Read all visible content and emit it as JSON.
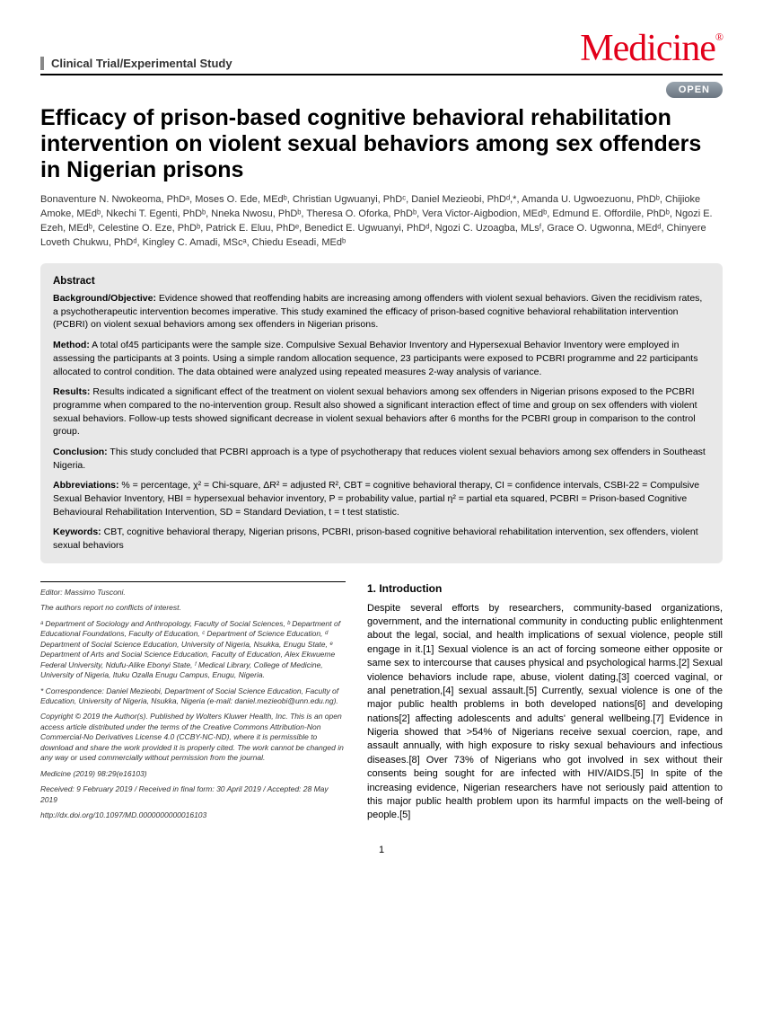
{
  "header": {
    "category": "Clinical Trial/Experimental Study",
    "journal": "Medicine",
    "open_label": "OPEN"
  },
  "title": "Efficacy of prison-based cognitive behavioral rehabilitation intervention on violent sexual behaviors among sex offenders in Nigerian prisons",
  "authors_html": "Bonaventure N. Nwokeoma, PhDᵃ, Moses O. Ede, MEdᵇ, Christian Ugwuanyi, PhDᶜ, Daniel Mezieobi, PhDᵈ,*, Amanda U. Ugwoezuonu, PhDᵇ, Chijioke Amoke, MEdᵇ, Nkechi T. Egenti, PhDᵇ, Nneka Nwosu, PhDᵇ, Theresa O. Oforka, PhDᵇ, Vera Victor-Aigbodion, MEdᵇ, Edmund E. Offordile, PhDᵇ, Ngozi E. Ezeh, MEdᵇ, Celestine O. Eze, PhDᵇ, Patrick E. Eluu, PhDᵉ, Benedict E. Ugwuanyi, PhDᵈ, Ngozi C. Uzoagba, MLsᶠ, Grace O. Ugwonna, MEdᵈ, Chinyere Loveth Chukwu, PhDᵈ, Kingley C. Amadi, MScᵃ, Chiedu Eseadi, MEdᵇ",
  "abstract": {
    "heading": "Abstract",
    "background_label": "Background/Objective:",
    "background": " Evidence showed that reoffending habits are increasing among offenders with violent sexual behaviors. Given the recidivism rates, a psychotherapeutic intervention becomes imperative. This study examined the efficacy of prison-based cognitive behavioral rehabilitation intervention (PCBRI) on violent sexual behaviors among sex offenders in Nigerian prisons.",
    "method_label": "Method:",
    "method": " A total of45 participants were the sample size. Compulsive Sexual Behavior Inventory and Hypersexual Behavior Inventory were employed in assessing the participants at 3 points. Using a simple random allocation sequence, 23 participants were exposed to PCBRI programme and 22 participants allocated to control condition. The data obtained were analyzed using repeated measures 2-way analysis of variance.",
    "results_label": "Results:",
    "results": " Results indicated a significant effect of the treatment on violent sexual behaviors among sex offenders in Nigerian prisons exposed to the PCBRI programme when compared to the no-intervention group. Result also showed a significant interaction effect of time and group on sex offenders with violent sexual behaviors. Follow-up tests showed significant decrease in violent sexual behaviors after 6 months for the PCBRI group in comparison to the control group.",
    "conclusion_label": "Conclusion:",
    "conclusion": " This study concluded that PCBRI approach is a type of psychotherapy that reduces violent sexual behaviors among sex offenders in Southeast Nigeria.",
    "abbrev_label": "Abbreviations:",
    "abbrev": " % = percentage, χ² = Chi-square, ΔR² = adjusted R², CBT = cognitive behavioral therapy, CI = confidence intervals, CSBI-22 = Compulsive Sexual Behavior Inventory, HBI = hypersexual behavior inventory, P = probability value, partial η² = partial eta squared, PCBRI = Prison-based Cognitive Behavioural Rehabilitation Intervention, SD = Standard Deviation, t = t test statistic.",
    "keywords_label": "Keywords:",
    "keywords": " CBT, cognitive behavioral therapy, Nigerian prisons, PCBRI, prison-based cognitive behavioral rehabilitation intervention, sex offenders, violent sexual behaviors"
  },
  "footer": {
    "editor": "Editor: Massimo Tusconi.",
    "coi": "The authors report no conflicts of interest.",
    "affiliations": "ᵃ Department of Sociology and Anthropology, Faculty of Social Sciences, ᵇ Department of Educational Foundations, Faculty of Education, ᶜ Department of Science Education, ᵈ Department of Social Science Education, University of Nigeria, Nsukka, Enugu State, ᵉ Department of Arts and Social Science Education, Faculty of Education, Alex Ekwueme Federal University, Ndufu-Alike Ebonyi State, ᶠ Medical Library, College of Medicine, University of Nigeria, Ituku Ozalla Enugu Campus, Enugu, Nigeria.",
    "correspondence": "* Correspondence: Daniel Mezieobi, Department of Social Science Education, Faculty of Education, University of Nigeria, Nsukka, Nigeria (e-mail: daniel.mezieobi@unn.edu.ng).",
    "copyright": "Copyright © 2019 the Author(s). Published by Wolters Kluwer Health, Inc. This is an open access article distributed under the terms of the Creative Commons Attribution-Non Commercial-No Derivatives License 4.0 (CCBY-NC-ND), where it is permissible to download and share the work provided it is properly cited. The work cannot be changed in any way or used commercially without permission from the journal.",
    "citation": "Medicine (2019) 98:29(e16103)",
    "dates": "Received: 9 February 2019 / Received in final form: 30 April 2019 / Accepted: 28 May 2019",
    "doi": "http://dx.doi.org/10.1097/MD.0000000000016103"
  },
  "intro": {
    "heading": "1. Introduction",
    "body": "Despite several efforts by researchers, community-based organizations, government, and the international community in conducting public enlightenment about the legal, social, and health implications of sexual violence, people still engage in it.[1] Sexual violence is an act of forcing someone either opposite or same sex to intercourse that causes physical and psychological harms.[2] Sexual violence behaviors include rape, abuse, violent dating,[3] coerced vaginal, or anal penetration,[4] sexual assault.[5] Currently, sexual violence is one of the major public health problems in both developed nations[6] and developing nations[2] affecting adolescents and adults' general wellbeing.[7] Evidence in Nigeria showed that >54% of Nigerians receive sexual coercion, rape, and assault annually, with high exposure to risky sexual behaviours and infectious diseases.[8] Over 73% of Nigerians who got involved in sex without their consents being sought for are infected with HIV/AIDS.[5] In spite of the increasing evidence, Nigerian researchers have not seriously paid attention to this major public health problem upon its harmful impacts on the well-being of people.[5]"
  },
  "page_number": "1",
  "colors": {
    "brand_red": "#e2001a",
    "abstract_bg": "#e8e8e8",
    "badge_bg": "#7a858f"
  }
}
